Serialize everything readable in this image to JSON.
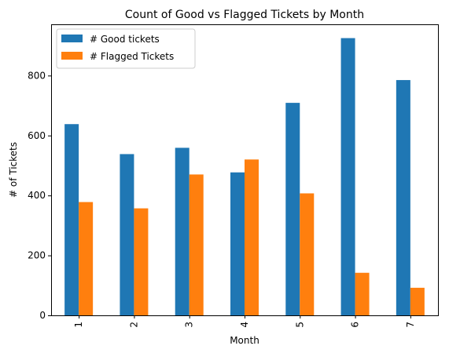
{
  "chart_data": {
    "type": "bar",
    "title": "Count of Good vs Flagged Tickets by Month",
    "xlabel": "Month",
    "ylabel": "# of Tickets",
    "categories": [
      "1",
      "2",
      "3",
      "4",
      "5",
      "6",
      "7"
    ],
    "series": [
      {
        "name": "# Good tickets",
        "color": "#1f77b4",
        "values": [
          638,
          538,
          559,
          477,
          709,
          925,
          785
        ]
      },
      {
        "name": "# Flagged Tickets",
        "color": "#ff7f0e",
        "values": [
          378,
          357,
          470,
          520,
          407,
          142,
          92
        ]
      }
    ],
    "ylim": [
      0,
      971
    ],
    "yticks": [
      0,
      200,
      400,
      600,
      800
    ],
    "grid": false,
    "legend_position": "top-left"
  }
}
